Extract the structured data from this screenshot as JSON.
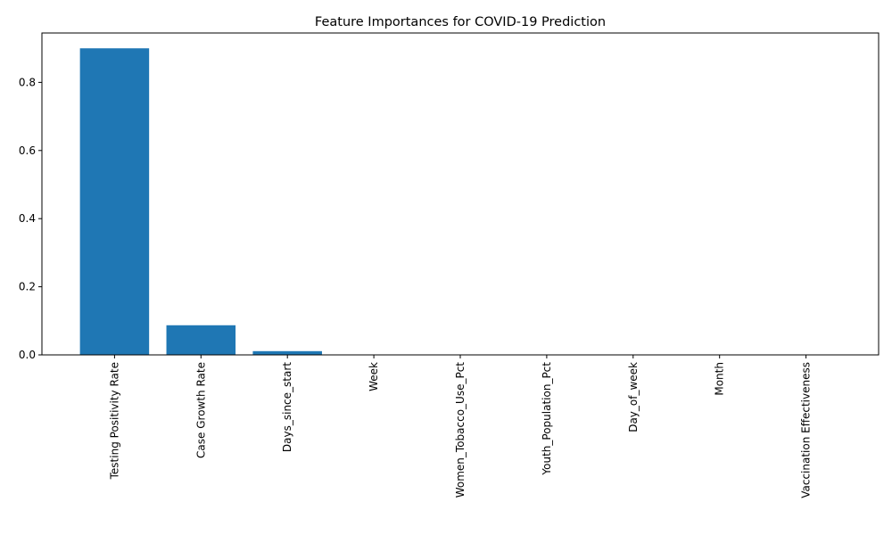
{
  "chart_data": {
    "type": "bar",
    "title": "Feature Importances for COVID-19 Prediction",
    "xlabel": "",
    "ylabel": "",
    "categories": [
      "Testing Positivity Rate",
      "Case Growth Rate",
      "Days_since_start",
      "Week",
      "Women_Tobacco_Use_Pct",
      "Youth_Population_Pct",
      "Day_of_week",
      "Month",
      "Vaccination Effectiveness"
    ],
    "values": [
      0.9,
      0.087,
      0.011,
      0.0005,
      0.0003,
      0.0002,
      0.0001,
      0.0001,
      0.0001
    ],
    "ylim": [
      0,
      0.945
    ],
    "yticks": [
      0.0,
      0.2,
      0.4,
      0.6,
      0.8
    ],
    "ytick_labels": [
      "0.0",
      "0.2",
      "0.4",
      "0.6",
      "0.8"
    ],
    "bar_color": "#1f77b4",
    "grid": false,
    "legend": "none"
  }
}
